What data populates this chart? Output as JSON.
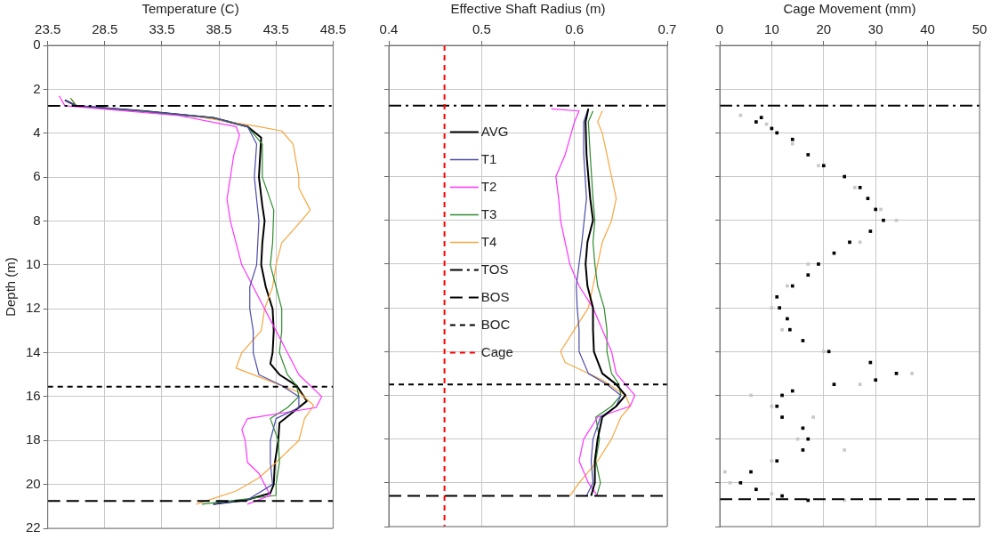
{
  "chart_data": [
    {
      "type": "line",
      "xlabel": "Temperature (C)",
      "ylabel": "Depth (m)",
      "xlim": [
        23.5,
        48.5
      ],
      "xticks": [
        23.5,
        28.5,
        33.5,
        38.5,
        43.5,
        48.5
      ],
      "ylim": [
        22,
        0
      ],
      "yticks": [
        0,
        2,
        4,
        6,
        8,
        10,
        12,
        14,
        16,
        18,
        20,
        22
      ],
      "grid": true,
      "marker": "none",
      "line_style": "solid",
      "series": [
        {
          "color": "#4b4ba8",
          "x": [
            25,
            26,
            32,
            38,
            41,
            41.8,
            41.6,
            42,
            41.8,
            41.2,
            41.2,
            41.5,
            41.5,
            42,
            44,
            45.5,
            45.5,
            43.5,
            43,
            43,
            43.2,
            41,
            38
          ],
          "values": [
            2.5,
            2.75,
            3,
            3.3,
            3.7,
            4.5,
            6,
            8,
            10,
            11,
            12,
            13,
            14,
            15,
            15.5,
            16,
            16.5,
            17,
            18,
            19,
            20,
            20.7,
            20.9
          ]
        },
        {
          "color": "#ff33ff",
          "x": [
            24.5,
            25,
            35,
            40,
            40.3,
            39.8,
            39.5,
            39.2,
            39.5,
            40,
            40.5,
            41.5,
            42.5,
            43.5,
            44.5,
            45.5,
            47.5,
            47,
            41,
            40.5,
            40.8,
            41,
            42,
            42.5,
            43,
            41
          ],
          "values": [
            2.3,
            2.75,
            3.2,
            3.7,
            4.1,
            5,
            6,
            7,
            8,
            9,
            10,
            11,
            12,
            13,
            14,
            15,
            16,
            16.5,
            17,
            17.5,
            18,
            19,
            19.5,
            20,
            20.5,
            20.9
          ]
        },
        {
          "color": "#2e8b2e",
          "x": [
            25.5,
            26,
            32,
            38,
            41,
            42.3,
            42.3,
            43.3,
            43.2,
            43,
            43.5,
            44,
            44,
            43.8,
            44.5,
            45.3,
            45.5,
            44.5,
            43,
            43.7,
            43.8,
            43.5,
            43.5,
            37
          ],
          "values": [
            2.4,
            2.75,
            3,
            3.3,
            3.7,
            4.5,
            6,
            7.5,
            9,
            10,
            11,
            12,
            13,
            14,
            15,
            15.5,
            16,
            16.5,
            17,
            18,
            19,
            20,
            20.5,
            20.9
          ]
        },
        {
          "color": "#f5a742",
          "x": [
            25.5,
            26,
            36,
            42,
            44,
            45,
            45.5,
            45.5,
            46.5,
            45.7,
            44,
            43.5,
            43.2,
            42.5,
            42.2,
            40.5,
            40,
            43,
            45.5,
            46.8,
            46,
            45.5,
            43.5,
            42,
            40,
            36.5
          ],
          "values": [
            2.4,
            2.75,
            3.2,
            3.7,
            3.9,
            4.5,
            6,
            6.5,
            7.5,
            8,
            9,
            10,
            11,
            12,
            13,
            14,
            14.7,
            15.3,
            15.8,
            16.4,
            17,
            18,
            19,
            19.7,
            20.3,
            20.9
          ]
        },
        {
          "color": "#000000",
          "x": [
            25,
            26,
            32,
            38,
            41,
            42.2,
            42,
            42.3,
            42.5,
            42.3,
            42.2,
            42.6,
            43.2,
            43.3,
            43.2,
            43,
            43.8,
            45.3,
            46.2,
            45,
            43.8,
            43.7,
            43.4,
            43.3,
            43,
            41,
            38
          ],
          "values": [
            2.5,
            2.75,
            3,
            3.3,
            3.7,
            4.2,
            6,
            7.3,
            8,
            9,
            10,
            11,
            12,
            13,
            14,
            14.5,
            15,
            15.5,
            16.2,
            16.7,
            17.2,
            18,
            19,
            20,
            20.4,
            20.7,
            20.9
          ]
        }
      ],
      "ref_lines": [
        {
          "axis": "y",
          "value": 2.75,
          "color": "#000000",
          "line_style": "dashdot"
        },
        {
          "axis": "y",
          "value": 15.55,
          "color": "#000000",
          "line_style": "dotted"
        },
        {
          "axis": "y",
          "value": 20.75,
          "color": "#000000",
          "line_style": "dashed"
        }
      ]
    },
    {
      "type": "line",
      "xlabel": "Effective Shaft Radius (m)",
      "xlim": [
        0.4,
        0.7
      ],
      "xticks": [
        0.4,
        0.5,
        0.6,
        0.7
      ],
      "ylim": [
        22,
        0
      ],
      "yticks": [
        0,
        2,
        4,
        6,
        8,
        10,
        12,
        14,
        16,
        18,
        20,
        22
      ],
      "tick_labels": "x",
      "grid": true,
      "marker": "none",
      "line_style": "solid",
      "legend": "left",
      "series": [
        {
          "name": "AVG",
          "color": "#000000",
          "x": [
            0.615,
            0.612,
            0.613,
            0.617,
            0.62,
            0.614,
            0.612,
            0.614,
            0.62,
            0.62,
            0.621,
            0.63,
            0.645,
            0.655,
            0.645,
            0.63,
            0.625,
            0.622,
            0.622,
            0.618
          ],
          "values": [
            2.9,
            3.5,
            5,
            7,
            8,
            9,
            10,
            11,
            12,
            13,
            14,
            15,
            15.5,
            16,
            16.5,
            17,
            18,
            19,
            20,
            20.6
          ]
        },
        {
          "name": "T1",
          "color": "#4b4ba8",
          "x": [
            0.615,
            0.61,
            0.61,
            0.613,
            0.608,
            0.605,
            0.602,
            0.603,
            0.605,
            0.605,
            0.615,
            0.635,
            0.65,
            0.645,
            0.628,
            0.62,
            0.618,
            0.62,
            0.613
          ],
          "values": [
            2.9,
            3.5,
            5,
            7,
            9,
            10,
            11,
            12,
            13,
            14,
            15,
            15.5,
            16,
            16.5,
            17,
            18,
            19,
            20,
            20.6
          ]
        },
        {
          "name": "T2",
          "color": "#ff33ff",
          "x": [
            0.575,
            0.605,
            0.6,
            0.59,
            0.58,
            0.583,
            0.585,
            0.59,
            0.595,
            0.605,
            0.62,
            0.63,
            0.64,
            0.645,
            0.665,
            0.66,
            0.625,
            0.61,
            0.605,
            0.615,
            0.625
          ],
          "values": [
            2.9,
            3,
            3.5,
            5,
            6,
            7,
            8,
            9,
            10,
            11,
            12,
            13,
            14,
            15,
            16,
            16.5,
            17,
            18,
            19,
            20,
            20.6
          ]
        },
        {
          "name": "T3",
          "color": "#2e8b2e",
          "x": [
            0.62,
            0.615,
            0.617,
            0.62,
            0.622,
            0.62,
            0.622,
            0.625,
            0.632,
            0.635,
            0.635,
            0.64,
            0.648,
            0.65,
            0.64,
            0.623,
            0.627,
            0.623,
            0.628,
            0.624
          ],
          "values": [
            3,
            3.5,
            5,
            7,
            8,
            9,
            10,
            11,
            12,
            13,
            14,
            15,
            15.5,
            16,
            16.5,
            17,
            18,
            19,
            20,
            20.6
          ]
        },
        {
          "name": "T4",
          "color": "#f5a742",
          "x": [
            0.63,
            0.625,
            0.63,
            0.635,
            0.64,
            0.645,
            0.64,
            0.63,
            0.625,
            0.62,
            0.615,
            0.6,
            0.585,
            0.59,
            0.63,
            0.655,
            0.66,
            0.65,
            0.64,
            0.625,
            0.605,
            0.595
          ],
          "values": [
            3,
            3.5,
            4,
            5,
            6,
            7,
            8,
            9,
            10,
            11,
            12,
            13,
            14,
            14.5,
            15.3,
            16,
            16.5,
            17,
            18,
            19,
            20,
            20.6
          ]
        }
      ],
      "ref_lines": [
        {
          "axis": "y",
          "value": 2.75,
          "label": "TOS",
          "color": "#000000",
          "line_style": "dashdot"
        },
        {
          "axis": "y",
          "value": 20.6,
          "label": "BOS",
          "color": "#000000",
          "line_style": "dashed"
        },
        {
          "axis": "y",
          "value": 15.5,
          "label": "BOC",
          "color": "#000000",
          "line_style": "dotted"
        },
        {
          "axis": "x",
          "value": 0.46,
          "label": "Cage",
          "color": "#ff0000",
          "line_style": "dotted"
        }
      ]
    },
    {
      "type": "scatter",
      "xlabel": "Cage Movement (mm)",
      "xlim": [
        0,
        50
      ],
      "xticks": [
        0,
        10,
        20,
        30,
        40,
        50
      ],
      "ylim": [
        22,
        0
      ],
      "yticks": [
        0,
        2,
        4,
        6,
        8,
        10,
        12,
        14,
        16,
        18,
        20,
        22
      ],
      "tick_labels": "x",
      "grid": true,
      "marker": "square",
      "series": [
        {
          "color": "#c8c8c8",
          "x": [
            4,
            9,
            14,
            19,
            26,
            31,
            34,
            27,
            17,
            13,
            10,
            12,
            20,
            37,
            27,
            6,
            10,
            18,
            15,
            24,
            10,
            1,
            2,
            10,
            24
          ],
          "values": [
            3.2,
            3.6,
            4.5,
            5.5,
            6.5,
            7.5,
            8,
            9,
            10,
            11,
            12,
            13,
            14,
            15,
            15.5,
            16,
            16.5,
            17,
            18,
            18.5,
            19,
            19.5,
            20,
            20.5,
            20.8
          ]
        },
        {
          "color": "#000000",
          "x": [
            8,
            7,
            10,
            11,
            14,
            17,
            20,
            24,
            27,
            28.5,
            30,
            31.5,
            29,
            25,
            22,
            19,
            17,
            14,
            11,
            11.5,
            13,
            13.5,
            16,
            21,
            29,
            34,
            30,
            22,
            14,
            12,
            11,
            12,
            16,
            17,
            16,
            11,
            6,
            4,
            7,
            12,
            17
          ],
          "values": [
            3.3,
            3.5,
            3.8,
            4,
            4.3,
            5,
            5.5,
            6,
            6.5,
            7,
            7.5,
            8,
            8.5,
            9,
            9.5,
            10,
            10.5,
            11,
            11.5,
            12,
            12.5,
            13,
            13.5,
            14,
            14.5,
            15,
            15.3,
            15.5,
            15.8,
            16,
            16.5,
            17,
            17.5,
            18,
            18.5,
            19,
            19.5,
            20,
            20.3,
            20.6,
            20.8
          ]
        }
      ],
      "ref_lines": [
        {
          "axis": "y",
          "value": 2.75,
          "color": "#000000",
          "line_style": "dashdot"
        },
        {
          "axis": "y",
          "value": 20.75,
          "color": "#000000",
          "line_style": "dashed"
        }
      ]
    }
  ]
}
